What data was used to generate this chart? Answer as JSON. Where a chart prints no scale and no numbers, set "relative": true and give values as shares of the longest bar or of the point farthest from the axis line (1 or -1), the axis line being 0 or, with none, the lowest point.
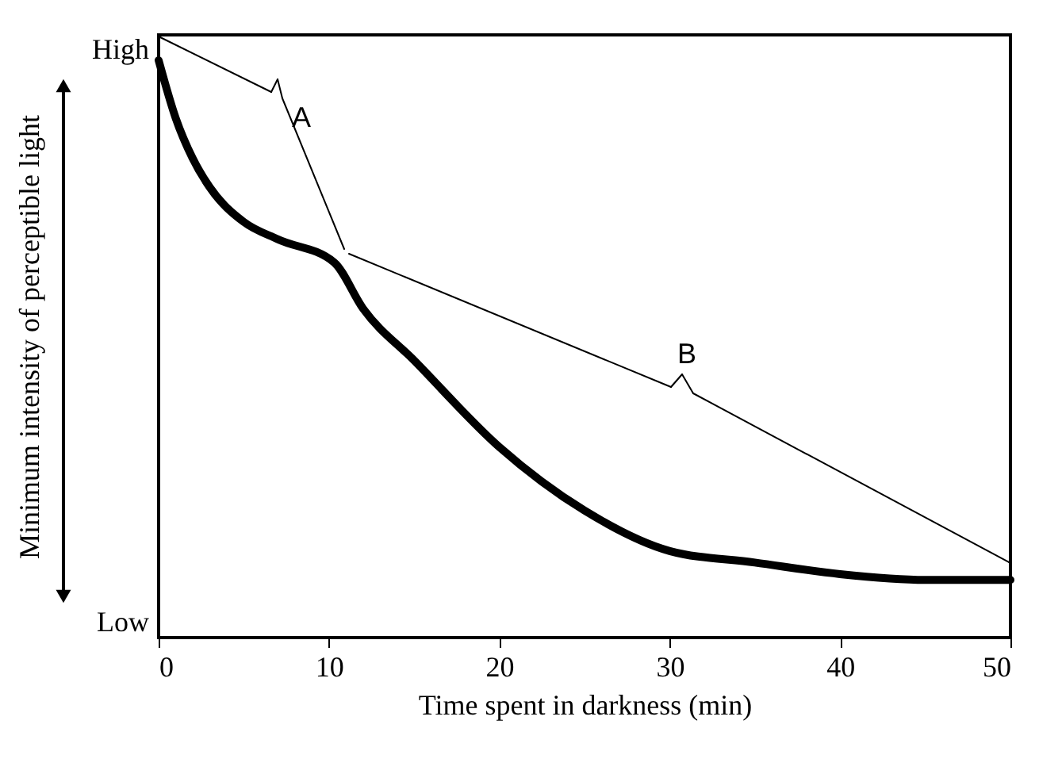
{
  "chart_data": {
    "type": "line",
    "relative": true,
    "xlabel": "Time spent in darkness (min)",
    "ylabel": "Minimum intensity of perceptible light",
    "xlim": [
      0,
      50
    ],
    "xticks": [
      0,
      10,
      20,
      30,
      40,
      50
    ],
    "x": [
      0,
      1,
      2,
      3,
      5,
      7,
      10.3,
      12,
      15,
      20,
      25,
      30,
      35,
      40,
      45,
      50
    ],
    "series": [
      {
        "color": "#000000",
        "values": [
          1.0,
          0.9,
          0.83,
          0.78,
          0.72,
          0.69,
          0.65,
          0.57,
          0.48,
          0.33,
          0.22,
          0.15,
          0.13,
          0.11,
          0.1,
          0.1
        ]
      }
    ],
    "annotations": [
      "High",
      "Low",
      "A",
      "B"
    ],
    "grid": false,
    "marker": "none",
    "line_style": "solid"
  }
}
